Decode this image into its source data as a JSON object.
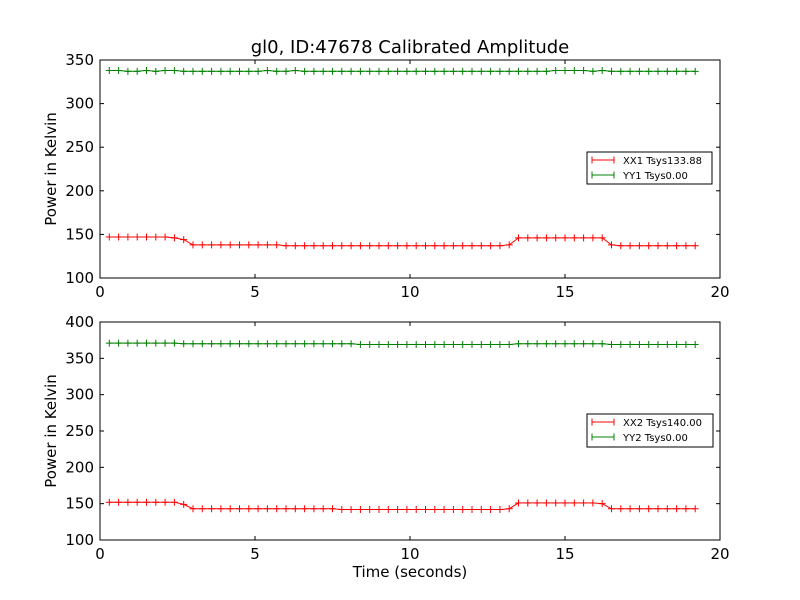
{
  "title": "gl0, ID:47678 Calibrated Amplitude",
  "chart_data": [
    {
      "type": "line",
      "title": "gl0, ID:47678 Calibrated Amplitude",
      "xlabel": "",
      "ylabel": "Power in Kelvin",
      "xlim": [
        0,
        20
      ],
      "ylim": [
        100,
        350
      ],
      "xticks": [
        0,
        5,
        10,
        15,
        20
      ],
      "yticks": [
        100,
        150,
        200,
        250,
        300,
        350
      ],
      "grid": false,
      "legend": "center-right",
      "series": [
        {
          "name": "XX1 Tsys133.88",
          "color": "#ff0000",
          "x": [
            0.3,
            0.6,
            0.9,
            1.2,
            1.5,
            1.8,
            2.1,
            2.4,
            2.7,
            3.0,
            3.3,
            3.6,
            3.9,
            4.2,
            4.5,
            4.8,
            5.1,
            5.4,
            5.7,
            6.0,
            6.3,
            6.6,
            6.9,
            7.2,
            7.5,
            7.8,
            8.1,
            8.4,
            8.7,
            9.0,
            9.3,
            9.6,
            9.9,
            10.2,
            10.5,
            10.8,
            11.1,
            11.4,
            11.7,
            12.0,
            12.3,
            12.6,
            12.9,
            13.2,
            13.5,
            13.8,
            14.1,
            14.4,
            14.7,
            15.0,
            15.3,
            15.6,
            15.9,
            16.2,
            16.5,
            16.8,
            17.1,
            17.4,
            17.7,
            18.0,
            18.3,
            18.6,
            18.9,
            19.2
          ],
          "y": [
            147,
            147,
            147,
            147,
            147,
            147,
            147,
            146,
            144,
            138,
            138,
            138,
            138,
            138,
            138,
            138,
            138,
            138,
            138,
            137,
            137,
            137,
            137,
            137,
            137,
            137,
            137,
            137,
            137,
            137,
            137,
            137,
            137,
            137,
            137,
            137,
            137,
            137,
            137,
            137,
            137,
            137,
            137,
            138,
            146,
            146,
            146,
            146,
            146,
            146,
            146,
            146,
            146,
            146,
            138,
            137,
            137,
            137,
            137,
            137,
            137,
            137,
            137,
            137
          ]
        },
        {
          "name": "YY1 Tsys0.00",
          "color": "#008000",
          "x": [
            0.3,
            0.6,
            0.9,
            1.2,
            1.5,
            1.8,
            2.1,
            2.4,
            2.7,
            3.0,
            3.3,
            3.6,
            3.9,
            4.2,
            4.5,
            4.8,
            5.1,
            5.4,
            5.7,
            6.0,
            6.3,
            6.6,
            6.9,
            7.2,
            7.5,
            7.8,
            8.1,
            8.4,
            8.7,
            9.0,
            9.3,
            9.6,
            9.9,
            10.2,
            10.5,
            10.8,
            11.1,
            11.4,
            11.7,
            12.0,
            12.3,
            12.6,
            12.9,
            13.2,
            13.5,
            13.8,
            14.1,
            14.4,
            14.7,
            15.0,
            15.3,
            15.6,
            15.9,
            16.2,
            16.5,
            16.8,
            17.1,
            17.4,
            17.7,
            18.0,
            18.3,
            18.6,
            18.9,
            19.2
          ],
          "y": [
            338,
            338,
            337,
            337,
            338,
            337,
            338,
            338,
            337,
            337,
            337,
            337,
            337,
            337,
            337,
            337,
            337,
            338,
            337,
            337,
            338,
            337,
            337,
            337,
            337,
            337,
            337,
            337,
            337,
            337,
            337,
            337,
            337,
            337,
            337,
            337,
            337,
            337,
            337,
            337,
            337,
            337,
            337,
            337,
            337,
            337,
            337,
            337,
            338,
            338,
            338,
            338,
            337,
            338,
            337,
            337,
            337,
            337,
            337,
            337,
            337,
            337,
            337,
            337
          ]
        }
      ]
    },
    {
      "type": "line",
      "title": "",
      "xlabel": "Time (seconds)",
      "ylabel": "Power in Kelvin",
      "xlim": [
        0,
        20
      ],
      "ylim": [
        100,
        400
      ],
      "xticks": [
        0,
        5,
        10,
        15,
        20
      ],
      "yticks": [
        100,
        150,
        200,
        250,
        300,
        350,
        400
      ],
      "grid": false,
      "legend": "center-right",
      "series": [
        {
          "name": "XX2 Tsys140.00",
          "color": "#ff0000",
          "x": [
            0.3,
            0.6,
            0.9,
            1.2,
            1.5,
            1.8,
            2.1,
            2.4,
            2.7,
            3.0,
            3.3,
            3.6,
            3.9,
            4.2,
            4.5,
            4.8,
            5.1,
            5.4,
            5.7,
            6.0,
            6.3,
            6.6,
            6.9,
            7.2,
            7.5,
            7.8,
            8.1,
            8.4,
            8.7,
            9.0,
            9.3,
            9.6,
            9.9,
            10.2,
            10.5,
            10.8,
            11.1,
            11.4,
            11.7,
            12.0,
            12.3,
            12.6,
            12.9,
            13.2,
            13.5,
            13.8,
            14.1,
            14.4,
            14.7,
            15.0,
            15.3,
            15.6,
            15.9,
            16.2,
            16.5,
            16.8,
            17.1,
            17.4,
            17.7,
            18.0,
            18.3,
            18.6,
            18.9,
            19.2
          ],
          "y": [
            152,
            152,
            152,
            152,
            152,
            152,
            152,
            152,
            149,
            143,
            143,
            143,
            143,
            143,
            143,
            143,
            143,
            143,
            143,
            143,
            143,
            143,
            143,
            143,
            143,
            142,
            142,
            142,
            142,
            142,
            142,
            142,
            142,
            142,
            142,
            142,
            142,
            142,
            142,
            142,
            142,
            142,
            142,
            143,
            151,
            151,
            151,
            151,
            151,
            151,
            151,
            151,
            151,
            150,
            143,
            143,
            143,
            143,
            143,
            143,
            143,
            143,
            143,
            143
          ]
        },
        {
          "name": "YY2 Tsys0.00",
          "color": "#008000",
          "x": [
            0.3,
            0.6,
            0.9,
            1.2,
            1.5,
            1.8,
            2.1,
            2.4,
            2.7,
            3.0,
            3.3,
            3.6,
            3.9,
            4.2,
            4.5,
            4.8,
            5.1,
            5.4,
            5.7,
            6.0,
            6.3,
            6.6,
            6.9,
            7.2,
            7.5,
            7.8,
            8.1,
            8.4,
            8.7,
            9.0,
            9.3,
            9.6,
            9.9,
            10.2,
            10.5,
            10.8,
            11.1,
            11.4,
            11.7,
            12.0,
            12.3,
            12.6,
            12.9,
            13.2,
            13.5,
            13.8,
            14.1,
            14.4,
            14.7,
            15.0,
            15.3,
            15.6,
            15.9,
            16.2,
            16.5,
            16.8,
            17.1,
            17.4,
            17.7,
            18.0,
            18.3,
            18.6,
            18.9,
            19.2
          ],
          "y": [
            371,
            371,
            371,
            371,
            371,
            371,
            371,
            371,
            370,
            370,
            370,
            370,
            370,
            370,
            370,
            370,
            370,
            370,
            370,
            370,
            370,
            370,
            370,
            370,
            370,
            370,
            370,
            369,
            369,
            369,
            369,
            369,
            369,
            369,
            369,
            369,
            369,
            369,
            369,
            369,
            369,
            369,
            369,
            369,
            370,
            370,
            370,
            370,
            370,
            370,
            370,
            370,
            370,
            370,
            369,
            369,
            369,
            369,
            369,
            369,
            369,
            369,
            369,
            369
          ]
        }
      ]
    }
  ]
}
